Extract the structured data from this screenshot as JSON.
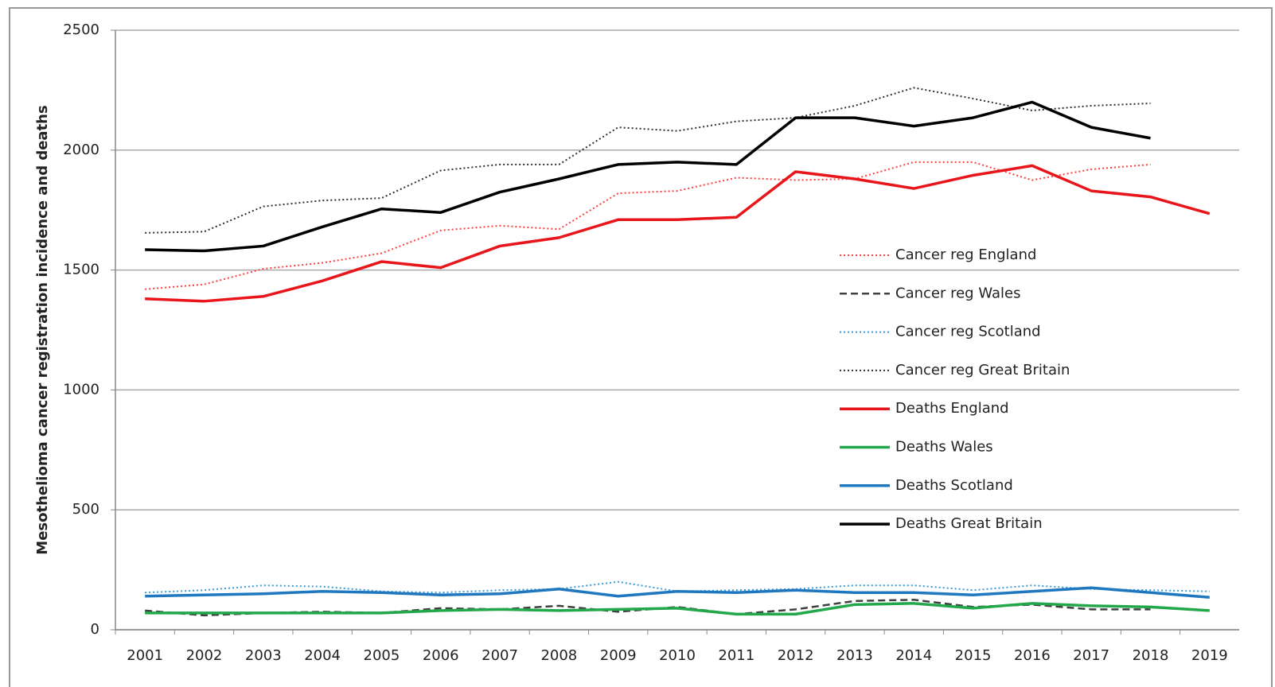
{
  "chart_data": {
    "type": "line",
    "y_label": "Mesothelioma cancer registration incidence and deaths",
    "categories": [
      "2001",
      "2002",
      "2003",
      "2004",
      "2005",
      "2006",
      "2007",
      "2008",
      "2009",
      "2010",
      "2011",
      "2012",
      "2013",
      "2014",
      "2015",
      "2016",
      "2017",
      "2018",
      "2019"
    ],
    "ylim": [
      0,
      2500
    ],
    "yticks": [
      0,
      500,
      1000,
      1500,
      2000,
      2500
    ],
    "grid": true,
    "series": [
      {
        "name": "Cancer reg England",
        "color": "#ff4040",
        "style": "dotted",
        "values": [
          1420,
          1440,
          1505,
          1530,
          1570,
          1665,
          1685,
          1670,
          1820,
          1830,
          1885,
          1875,
          1880,
          1950,
          1950,
          1875,
          1920,
          1940,
          null
        ]
      },
      {
        "name": "Cancer reg Wales",
        "color": "#404040",
        "style": "dashed",
        "values": [
          80,
          60,
          70,
          75,
          70,
          90,
          85,
          100,
          75,
          95,
          65,
          85,
          120,
          125,
          95,
          105,
          85,
          85,
          null
        ]
      },
      {
        "name": "Cancer reg Scotland",
        "color": "#3a9bd9",
        "style": "dotted",
        "values": [
          155,
          165,
          185,
          180,
          160,
          155,
          165,
          170,
          200,
          160,
          165,
          170,
          185,
          185,
          165,
          185,
          170,
          165,
          160
        ]
      },
      {
        "name": "Cancer reg Great Britain",
        "color": "#303030",
        "style": "dotted",
        "values": [
          1655,
          1660,
          1765,
          1790,
          1800,
          1915,
          1940,
          1940,
          2095,
          2080,
          2120,
          2135,
          2185,
          2260,
          2215,
          2165,
          2185,
          2195,
          null
        ]
      },
      {
        "name": "Deaths England",
        "color": "#e8161b",
        "style": "solid",
        "values": [
          1380,
          1370,
          1390,
          1455,
          1535,
          1510,
          1600,
          1635,
          1710,
          1710,
          1720,
          1910,
          1880,
          1840,
          1895,
          1935,
          1830,
          1805,
          1735
        ]
      },
      {
        "name": "Deaths Wales",
        "color": "#22a84a",
        "style": "solid",
        "values": [
          70,
          70,
          70,
          70,
          70,
          80,
          85,
          80,
          85,
          90,
          65,
          65,
          105,
          110,
          90,
          110,
          100,
          95,
          80
        ]
      },
      {
        "name": "Deaths Scotland",
        "color": "#1f77c0",
        "style": "solid",
        "values": [
          140,
          145,
          150,
          160,
          155,
          145,
          150,
          170,
          140,
          160,
          155,
          165,
          155,
          155,
          145,
          160,
          175,
          155,
          135
        ]
      },
      {
        "name": "Deaths Great Britain",
        "color": "#000000",
        "style": "solid",
        "values": [
          1585,
          1580,
          1600,
          1680,
          1755,
          1740,
          1825,
          1880,
          1940,
          1950,
          1940,
          2135,
          2135,
          2100,
          2135,
          2200,
          2095,
          2050,
          null
        ]
      }
    ]
  }
}
